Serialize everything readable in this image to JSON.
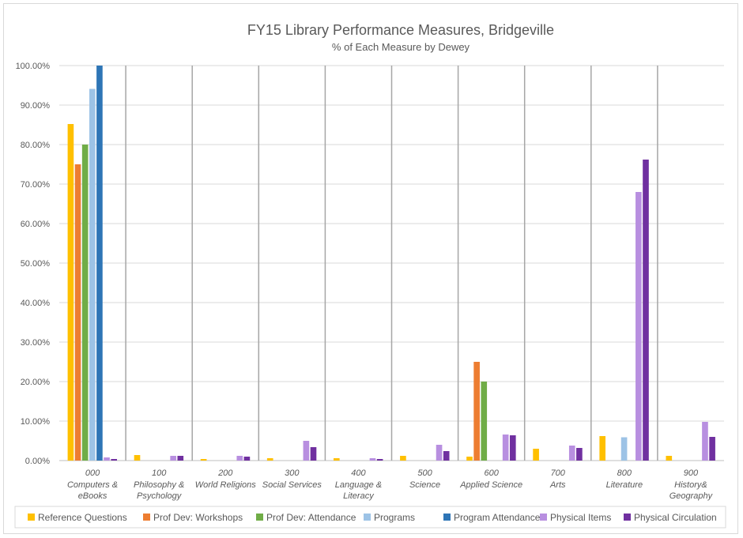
{
  "chart_data": {
    "type": "bar",
    "title": "FY15 Library Performance Measures, Bridgeville",
    "subtitle": "% of Each Measure by Dewey",
    "xlabel": "",
    "ylabel": "",
    "ylim": [
      0,
      100
    ],
    "y_ticks": [
      "0.00%",
      "10.00%",
      "20.00%",
      "30.00%",
      "40.00%",
      "50.00%",
      "60.00%",
      "70.00%",
      "80.00%",
      "90.00%",
      "100.00%"
    ],
    "grid": true,
    "legend_position": "bottom",
    "categories": [
      {
        "code": "000",
        "name": [
          "Computers &",
          "eBooks"
        ]
      },
      {
        "code": "100",
        "name": [
          "Philosophy &",
          "Psychology"
        ]
      },
      {
        "code": "200",
        "name": [
          "World Religions"
        ]
      },
      {
        "code": "300",
        "name": [
          "Social Services"
        ]
      },
      {
        "code": "400",
        "name": [
          "Language &",
          "Literacy"
        ]
      },
      {
        "code": "500",
        "name": [
          "Science"
        ]
      },
      {
        "code": "600",
        "name": [
          "Applied Science"
        ]
      },
      {
        "code": "700",
        "name": [
          "Arts"
        ]
      },
      {
        "code": "800",
        "name": [
          "Literature"
        ]
      },
      {
        "code": "900",
        "name": [
          "History&",
          "Geography"
        ]
      }
    ],
    "series": [
      {
        "name": "Reference Questions",
        "color": "#FFC000",
        "values": [
          85.2,
          1.4,
          0.4,
          0.6,
          0.6,
          1.2,
          1.0,
          3.0,
          6.2,
          1.2
        ]
      },
      {
        "name": "Prof Dev: Workshops",
        "color": "#ED7D31",
        "values": [
          75.0,
          0,
          0,
          0,
          0,
          0,
          25.0,
          0,
          0,
          0
        ]
      },
      {
        "name": "Prof Dev: Attendance",
        "color": "#70AD47",
        "values": [
          80.0,
          0,
          0,
          0,
          0,
          0,
          20.0,
          0,
          0,
          0
        ]
      },
      {
        "name": "Programs",
        "color": "#9DC3E6",
        "values": [
          94.1,
          0,
          0,
          0,
          0,
          0,
          0,
          0,
          5.9,
          0
        ]
      },
      {
        "name": "Program Attendance",
        "color": "#2E75B6",
        "values": [
          100.0,
          0,
          0,
          0,
          0,
          0,
          0,
          0,
          0,
          0
        ]
      },
      {
        "name": "Physical Items",
        "color": "#B88FE0",
        "values": [
          0.8,
          1.2,
          1.2,
          5.0,
          0.6,
          4.0,
          6.6,
          3.8,
          68.0,
          9.8
        ]
      },
      {
        "name": "Physical Circulation",
        "color": "#7030A0",
        "values": [
          0.4,
          1.2,
          1.0,
          3.4,
          0.4,
          2.4,
          6.4,
          3.2,
          76.2,
          6.0
        ]
      }
    ]
  }
}
